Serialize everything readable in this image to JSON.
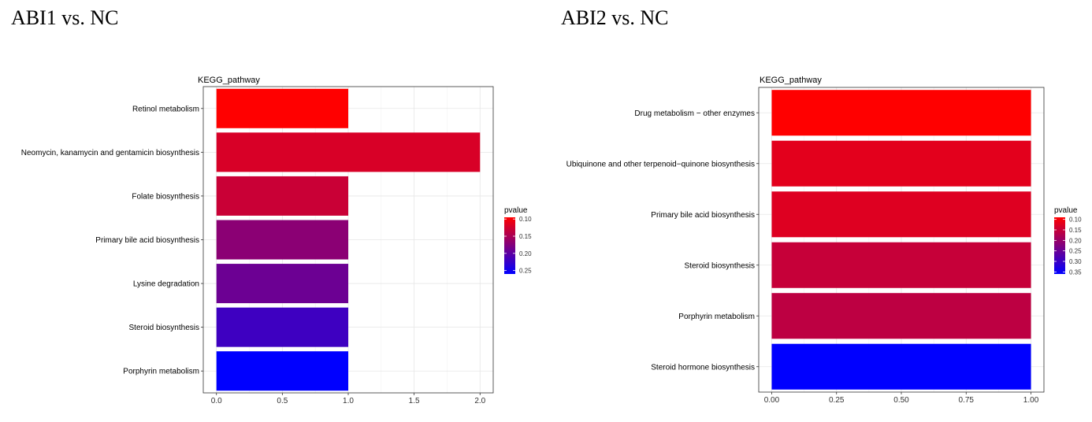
{
  "headings": [
    "ABI1 vs. NC",
    "ABI2 vs. NC"
  ],
  "chart_data": [
    {
      "type": "bar",
      "orientation": "horizontal",
      "title": "KEGG_pathway",
      "categories": [
        "Retinol metabolism",
        "Neomycin, kanamycin and gentamicin biosynthesis",
        "Folate biosynthesis",
        "Primary bile acid biosynthesis",
        "Lysine degradation",
        "Steroid biosynthesis",
        "Porphyrin metabolism"
      ],
      "values": [
        1,
        2,
        1,
        1,
        1,
        1,
        1
      ],
      "pvalues": [
        0.095,
        0.12,
        0.13,
        0.17,
        0.19,
        0.22,
        0.26
      ],
      "xticks": [
        "0.0",
        "0.5",
        "1.0",
        "1.5",
        "2.0"
      ],
      "xtick_values": [
        0,
        0.5,
        1.0,
        1.5,
        2.0
      ],
      "xlim": [
        -0.1,
        2.1
      ],
      "grid": true,
      "legend": {
        "title": "pvalue",
        "ticks": [
          "0.10",
          "0.15",
          "0.20",
          "0.25"
        ],
        "tick_values": [
          0.1,
          0.15,
          0.2,
          0.25
        ],
        "range": [
          0.095,
          0.26
        ],
        "placement": "right",
        "color_low": "#ff0000",
        "color_high": "#0000ff"
      }
    },
    {
      "type": "bar",
      "orientation": "horizontal",
      "title": "KEGG_pathway",
      "categories": [
        "Drug metabolism − other enzymes",
        "Ubiquinone and other terpenoid−quinone biosynthesis",
        "Primary bile acid biosynthesis",
        "Steroid biosynthesis",
        "Porphyrin metabolism",
        "Steroid hormone biosynthesis"
      ],
      "values": [
        1,
        1,
        1,
        1,
        1,
        1
      ],
      "pvalues": [
        0.09,
        0.12,
        0.125,
        0.15,
        0.16,
        0.36
      ],
      "xticks": [
        "0.00",
        "0.25",
        "0.50",
        "0.75",
        "1.00"
      ],
      "xtick_values": [
        0,
        0.25,
        0.5,
        0.75,
        1.0
      ],
      "xlim": [
        -0.05,
        1.05
      ],
      "grid": true,
      "legend": {
        "title": "pvalue",
        "ticks": [
          "0.10",
          "0.15",
          "0.20",
          "0.25",
          "0.30",
          "0.35"
        ],
        "tick_values": [
          0.1,
          0.15,
          0.2,
          0.25,
          0.3,
          0.35
        ],
        "range": [
          0.09,
          0.36
        ],
        "placement": "right",
        "color_low": "#ff0000",
        "color_high": "#0000ff"
      }
    }
  ]
}
